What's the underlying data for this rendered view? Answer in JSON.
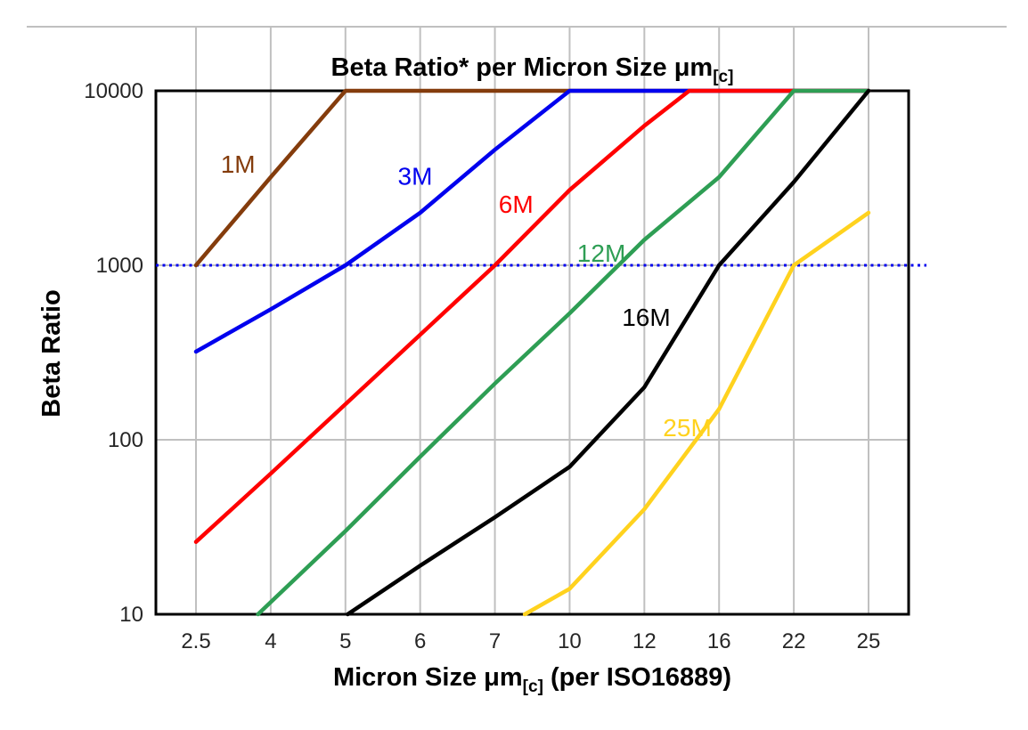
{
  "title": {
    "prefix": "Beta Ratio* per Micron Size ",
    "mu": "μm",
    "sub": "[c]"
  },
  "y_axis": {
    "label": "Beta Ratio"
  },
  "x_axis": {
    "prefix": "Micron Size ",
    "mu": "μm",
    "sub": "[c]",
    "suffix": " (per ISO16889)"
  },
  "chart_data": {
    "type": "line",
    "title": "Beta Ratio* per Micron Size μm[c]",
    "xlabel": "Micron Size μm[c] (per ISO16889)",
    "ylabel": "Beta Ratio",
    "x_categories": [
      "2.5",
      "4",
      "5",
      "6",
      "7",
      "10",
      "12",
      "16",
      "22",
      "25"
    ],
    "y_ticks": [
      10,
      100,
      1000,
      10000
    ],
    "y_scale": "log",
    "ylim": [
      10,
      10000
    ],
    "grid": true,
    "grid_color": "#c0c0c0",
    "legend_position": "inline-labels",
    "x_note": "point x = index into x_categories; fractional x = position between gridlines; values of 10000 are clipped at chart top",
    "reference_line": {
      "value": 1000,
      "color": "#0000ee",
      "style": "dotted"
    },
    "series": [
      {
        "name": "1M",
        "color": "#843c0c",
        "label_pos": [
          0.33,
          3400
        ],
        "points": [
          [
            0,
            1000
          ],
          [
            1,
            3200
          ],
          [
            2,
            10000
          ],
          [
            9,
            10000
          ]
        ]
      },
      {
        "name": "3M",
        "color": "#0000ee",
        "label_pos": [
          2.7,
          2900
        ],
        "points": [
          [
            0,
            320
          ],
          [
            1,
            560
          ],
          [
            2,
            1000
          ],
          [
            3,
            2000
          ],
          [
            4,
            4600
          ],
          [
            5,
            10000
          ],
          [
            9,
            10000
          ]
        ]
      },
      {
        "name": "6M",
        "color": "#ff0000",
        "label_pos": [
          4.05,
          2000
        ],
        "points": [
          [
            0,
            26
          ],
          [
            1,
            64
          ],
          [
            2,
            160
          ],
          [
            3,
            400
          ],
          [
            4,
            1000
          ],
          [
            5,
            2700
          ],
          [
            6,
            6300
          ],
          [
            6.6,
            10000
          ],
          [
            9,
            10000
          ]
        ]
      },
      {
        "name": "12M",
        "color": "#2e9e54",
        "label_pos": [
          5.1,
          1050
        ],
        "points": [
          [
            0.83,
            10
          ],
          [
            2,
            30
          ],
          [
            3,
            80
          ],
          [
            4,
            210
          ],
          [
            5,
            530
          ],
          [
            6,
            1400
          ],
          [
            7,
            3200
          ],
          [
            8,
            10000
          ],
          [
            9,
            10000
          ]
        ]
      },
      {
        "name": "16M",
        "color": "#000000",
        "label_pos": [
          5.7,
          450
        ],
        "points": [
          [
            2.03,
            10
          ],
          [
            3,
            19
          ],
          [
            4,
            36
          ],
          [
            5,
            70
          ],
          [
            6,
            200
          ],
          [
            7,
            1000
          ],
          [
            8,
            3000
          ],
          [
            9,
            10000
          ]
        ]
      },
      {
        "name": "25M",
        "color": "#ffd21e",
        "label_pos": [
          6.25,
          105
        ],
        "points": [
          [
            4.4,
            10
          ],
          [
            5,
            14
          ],
          [
            6,
            40
          ],
          [
            7,
            150
          ],
          [
            8,
            1000
          ],
          [
            9,
            2000
          ]
        ]
      }
    ]
  }
}
